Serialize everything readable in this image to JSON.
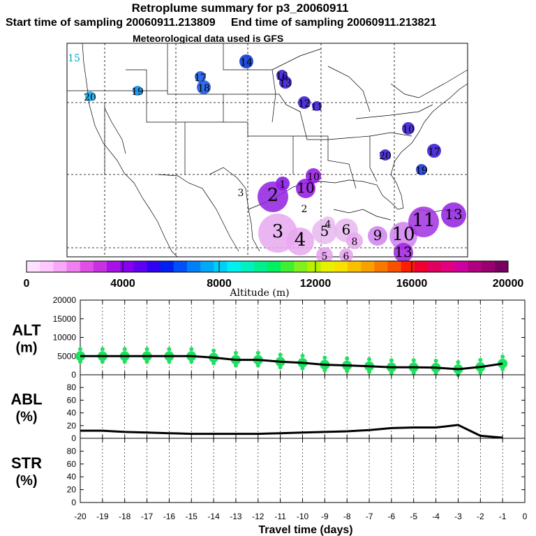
{
  "title": "Retroplume summary for p3_20060911",
  "start_sampling": "Start time of sampling 20060911.213809",
  "end_sampling": "End time of sampling 20060911.213821",
  "met_data": "Meteorological data used is GFS",
  "colorbar": {
    "label": "Altitude (m)",
    "ticks": [
      "0",
      "4000",
      "8000",
      "12000",
      "16000",
      "20000"
    ],
    "colors": [
      "#ffe0ff",
      "#ffc8ff",
      "#f8a8f8",
      "#f080f0",
      "#e050e8",
      "#c830e0",
      "#a810e8",
      "#8800f0",
      "#6000f0",
      "#3000f0",
      "#0020f0",
      "#0050f8",
      "#0080f8",
      "#00a8f8",
      "#00d0f8",
      "#00f0f0",
      "#00f0c0",
      "#00f090",
      "#00f060",
      "#40f030",
      "#80f020",
      "#b8f000",
      "#e8f000",
      "#f8e000",
      "#f8c000",
      "#f8a000",
      "#f87800",
      "#f85000",
      "#f82000",
      "#f00030",
      "#e00060",
      "#e00080",
      "#d000a0",
      "#b00080",
      "#980070",
      "#780060"
    ]
  },
  "map_labels": [
    {
      "text": "15",
      "color": "#00a8c8"
    },
    {
      "text": "20",
      "color": "#00a8c8"
    },
    {
      "text": "19",
      "color": "#0088c8"
    },
    {
      "text": "17",
      "color": "#1050e0"
    },
    {
      "text": "18",
      "color": "#1050e0"
    },
    {
      "text": "14",
      "color": "#0030d0"
    },
    {
      "text": "16",
      "color": "#3010d0"
    },
    {
      "text": "13",
      "color": "#3010d0"
    },
    {
      "text": "12",
      "color": "#3010d0"
    },
    {
      "text": "11",
      "color": "#3010d0"
    },
    {
      "text": "10",
      "color": "#3010d0"
    },
    {
      "text": "17",
      "color": "#3010d0"
    },
    {
      "text": "20",
      "color": "#3010d0"
    },
    {
      "text": "19",
      "color": "#1030d0"
    },
    {
      "text": "10",
      "color": "#9010e0"
    },
    {
      "text": "1",
      "color": "#8010e0"
    },
    {
      "text": "10",
      "color": "#9010e0"
    },
    {
      "text": "2",
      "color": "#9020e0"
    },
    {
      "text": "3",
      "color": "#000000"
    },
    {
      "text": "2",
      "color": "#000000"
    },
    {
      "text": "3",
      "color": "#e090f0"
    },
    {
      "text": "4",
      "color": "#e090f0"
    },
    {
      "text": "5",
      "color": "#e090f0"
    },
    {
      "text": "6",
      "color": "#e0a0f0"
    },
    {
      "text": "8",
      "color": "#e0a0f0"
    },
    {
      "text": "9",
      "color": "#d080f0"
    },
    {
      "text": "10",
      "color": "#d080f0"
    },
    {
      "text": "11",
      "color": "#a030e0"
    },
    {
      "text": "13",
      "color": "#9020e0"
    },
    {
      "text": "5",
      "color": "#e090f0"
    },
    {
      "text": "6",
      "color": "#e090f0"
    },
    {
      "text": "4",
      "color": "#e0a0f0"
    },
    {
      "text": "13",
      "color": "#a020e0"
    }
  ],
  "chart_data": [
    {
      "type": "line",
      "panel": "ALT",
      "ylabel": "ALT\n(m)",
      "ylabel_line1": "ALT",
      "ylabel_line2": "(m)",
      "ylim": [
        0,
        20000
      ],
      "yticks": [
        "0",
        "5000",
        "10000",
        "15000",
        "20000"
      ],
      "x": [
        -20,
        -19,
        -18,
        -17,
        -16,
        -15,
        -14,
        -13,
        -12,
        -11,
        -10,
        -9,
        -8,
        -7,
        -6,
        -5,
        -4,
        -3,
        -2,
        -1
      ],
      "values": [
        5000,
        5000,
        5000,
        5000,
        5000,
        5000,
        4600,
        4000,
        4000,
        3500,
        3200,
        2700,
        2500,
        2300,
        2000,
        2000,
        1900,
        1500,
        2100,
        3000
      ],
      "scatter_color": "#20e060"
    },
    {
      "type": "line",
      "panel": "ABL",
      "ylabel_line1": "ABL",
      "ylabel_line2": "(%)",
      "ylim": [
        0,
        100
      ],
      "yticks": [
        "0",
        "20",
        "40",
        "60",
        "80"
      ],
      "x": [
        -20,
        -19,
        -18,
        -17,
        -16,
        -15,
        -14,
        -13,
        -12,
        -11,
        -10,
        -9,
        -8,
        -7,
        -6,
        -5,
        -4,
        -3,
        -2,
        -1
      ],
      "values": [
        12,
        12,
        10,
        9,
        8,
        7,
        7,
        7,
        7,
        8,
        9,
        10,
        11,
        13,
        16,
        17,
        17,
        21,
        4,
        1
      ]
    },
    {
      "type": "line",
      "panel": "STR",
      "ylabel_line1": "STR",
      "ylabel_line2": "(%)",
      "ylim": [
        0,
        100
      ],
      "yticks": [
        "0",
        "20",
        "40",
        "60",
        "80"
      ],
      "x": [],
      "values": []
    }
  ],
  "x_axis": {
    "xlabel": "Travel time (days)",
    "xlim": [
      -20,
      0
    ],
    "ticks": [
      "-20",
      "-19",
      "-18",
      "-17",
      "-16",
      "-15",
      "-14",
      "-13",
      "-12",
      "-11",
      "-10",
      "-9",
      "-8",
      "-7",
      "-6",
      "-5",
      "-4",
      "-3",
      "-2",
      "-1",
      "0"
    ]
  }
}
